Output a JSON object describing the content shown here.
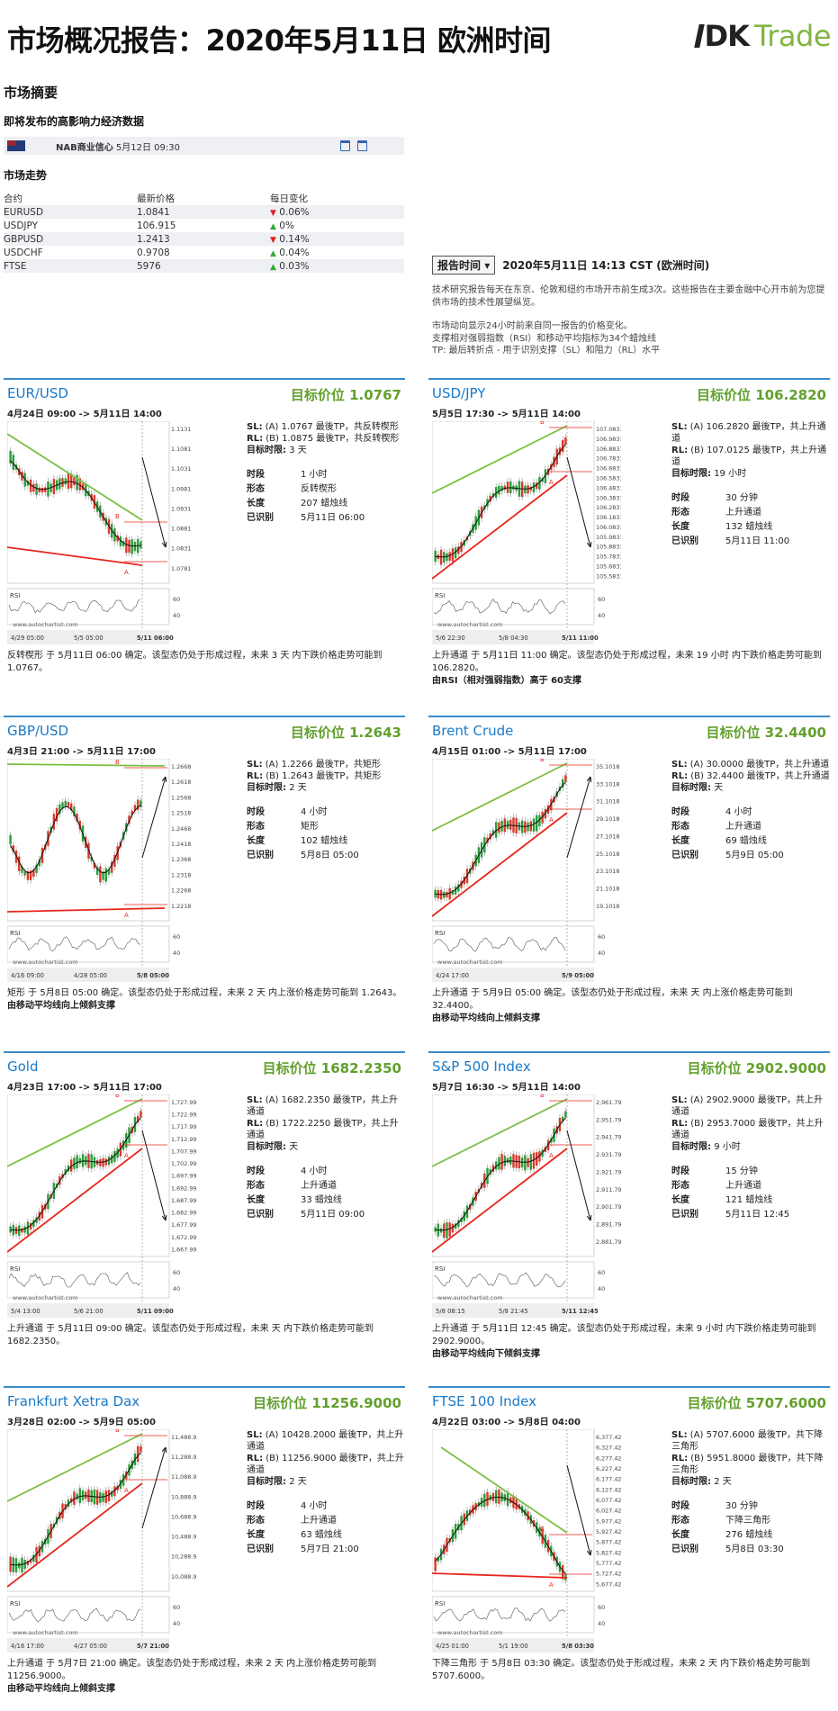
{
  "header": {
    "title": "市场概况报告：2020年5月11日 欧洲时间",
    "logo_mark": "DK",
    "logo_text": "Trade"
  },
  "summary": {
    "title": "市场摘要",
    "events_title": "即将发布的高影响力经济数据",
    "event": {
      "name": "NAB商业信心",
      "time": "5月12日 09:30",
      "flag": "australia-flag"
    },
    "trend_title": "市场走势",
    "columns": [
      "合约",
      "最新价格",
      "每日变化"
    ],
    "rows": [
      {
        "sym": "EURUSD",
        "price": "1.0841",
        "dir": "down",
        "chg": "0.06%"
      },
      {
        "sym": "USDJPY",
        "price": "106.915",
        "dir": "up",
        "chg": "0%"
      },
      {
        "sym": "GBPUSD",
        "price": "1.2413",
        "dir": "down",
        "chg": "0.14%"
      },
      {
        "sym": "USDCHF",
        "price": "0.9708",
        "dir": "up",
        "chg": "0.04%"
      },
      {
        "sym": "FTSE",
        "price": "5976",
        "dir": "up",
        "chg": "0.03%"
      }
    ]
  },
  "report": {
    "button": "报告时间",
    "time": "2020年5月11日 14:13 CST (欧洲时间)",
    "info1": "技术研究报告每天在东京、伦敦和纽约市场开市前生成3次。这些报告在主要金融中心开市前为您提供市场的技术性展望纵览。",
    "info2": "市场动向显示24小时前来自同一报告的价格变化。",
    "info3": "支撑相对强弱指数（RSI）和移动平均指标为34个蜡烛线",
    "info4": "TP: 最后转折点 - 用于识别支撑（SL）和阻力（RL）水平"
  },
  "labels": {
    "period": "时段",
    "pattern": "形态",
    "length": "长度",
    "identified": "已识别",
    "rsi": "RSI",
    "watermark": "www.autochartist.com"
  },
  "colors": {
    "title_blue": "#1a7ac8",
    "target_green": "#62a02c",
    "pattern_green": "#7ac043",
    "pattern_red": "#e8261c",
    "card_border": "#3a8cc8"
  },
  "cards": [
    {
      "name": "EUR/USD",
      "target": "目标价位 1.0767",
      "range": "4月24日 09:00 -> 5月11日 14:00",
      "sl": "SL:",
      "sl_text": "(A) 1.0767 最後TP，共反转楔形",
      "rl": "RL:",
      "rl_text": "(B) 1.0875 最後TP，共反转楔形",
      "tf_label": "目标时限:",
      "tf": "3 天",
      "period": "1 小时",
      "pattern": "反转楔形",
      "length": "207 蜡烛线",
      "identified": "5月11日 06:00",
      "desc": "反转楔形 于 5月11日 06:00 确定。该型态仍处于形成过程，未来 3 天 内下跌价格走势可能到 1.0767。",
      "note": "",
      "yticks": [
        "1.1131",
        "1.1081",
        "1.1031",
        "1.0981",
        "1.0931",
        "1.0881",
        "1.0831",
        "1.0781"
      ],
      "xticks": [
        "4/29 05:00",
        "5/5 05:00",
        "5/11 06:00"
      ],
      "kind": "wedge-down"
    },
    {
      "name": "USD/JPY",
      "target": "目标价位 106.2820",
      "range": "5月5日 17:30 -> 5月11日 14:00",
      "sl": "SL:",
      "sl_text": "(A) 106.2820 最後TP，共上升通道",
      "rl": "RL:",
      "rl_text": "(B) 107.0125 最後TP，共上升通道",
      "tf_label": "目标时限:",
      "tf": "19 小时",
      "period": "30 分钟",
      "pattern": "上升通道",
      "length": "132 蜡烛线",
      "identified": "5月11日 11:00",
      "desc": "上升通道 于 5月11日 11:00 确定。该型态仍处于形成过程，未来 19 小时 内下跌价格走势可能到 106.2820。",
      "note": "由RSI（相对强弱指数）高于 60支撑",
      "yticks": [
        "107.0831",
        "106.9831",
        "106.8831",
        "106.7831",
        "106.6831",
        "106.5831",
        "106.4831",
        "106.3831",
        "106.2831",
        "106.1831",
        "106.0831",
        "105.9831",
        "105.8831",
        "105.7831",
        "105.6831",
        "105.5831"
      ],
      "xticks": [
        "5/6 22:30",
        "5/8 04:30",
        "5/11 11:00"
      ],
      "kind": "channel-up-down"
    },
    {
      "name": "GBP/USD",
      "target": "目标价位 1.2643",
      "range": "4月3日 21:00 -> 5月11日 17:00",
      "sl": "SL:",
      "sl_text": "(A) 1.2266 最後TP，共矩形",
      "rl": "RL:",
      "rl_text": "(B) 1.2643 最後TP，共矩形",
      "tf_label": "目标时限:",
      "tf": "2 天",
      "period": "4 小时",
      "pattern": "矩形",
      "length": "102 蜡烛线",
      "identified": "5月8日 05:00",
      "desc": "矩形 于 5月8日 05:00 确定。该型态仍处于形成过程，未来 2 天 内上涨价格走势可能到 1.2643。",
      "note": "由移动平均线向上倾斜支撑",
      "yticks": [
        "1.2668",
        "1.2618",
        "1.2568",
        "1.2518",
        "1.2468",
        "1.2418",
        "1.2368",
        "1.2318",
        "1.2268",
        "1.2218"
      ],
      "xticks": [
        "4/16 09:00",
        "4/28 05:00",
        "5/8 05:00"
      ],
      "kind": "rect-up"
    },
    {
      "name": "Brent Crude",
      "target": "目标价位 32.4400",
      "range": "4月15日 01:00 -> 5月11日 17:00",
      "sl": "SL:",
      "sl_text": "(A) 30.0000 最後TP，共上升通道",
      "rl": "RL:",
      "rl_text": "(B) 32.4400 最後TP，共上升通道",
      "tf_label": "目标时限:",
      "tf": "天",
      "period": "4 小时",
      "pattern": "上升通道",
      "length": "69 蜡烛线",
      "identified": "5月9日 05:00",
      "desc": "上升通道 于 5月9日 05:00 确定。该型态仍处于形成过程，未来 天 内上涨价格走势可能到 32.4400。",
      "note": "由移动平均线向上倾斜支撑",
      "yticks": [
        "35.1018",
        "33.1018",
        "31.1018",
        "29.1018",
        "27.1018",
        "25.1018",
        "23.1018",
        "21.1018",
        "19.1018"
      ],
      "xticks": [
        "4/24 17:00",
        "5/9 05:00"
      ],
      "kind": "channel-up-up"
    },
    {
      "name": "Gold",
      "target": "目标价位 1682.2350",
      "range": "4月23日 17:00 -> 5月11日 17:00",
      "sl": "SL:",
      "sl_text": "(A) 1682.2350 最後TP，共上升通道",
      "rl": "RL:",
      "rl_text": "(B) 1722.2250 最後TP，共上升通道",
      "tf_label": "目标时限:",
      "tf": "天",
      "period": "4 小时",
      "pattern": "上升通道",
      "length": "33 蜡烛线",
      "identified": "5月11日 09:00",
      "desc": "上升通道 于 5月11日 09:00 确定。该型态仍处于形成过程，未来 天 内下跌价格走势可能到 1682.2350。",
      "note": "",
      "yticks": [
        "1,727.9969",
        "1,722.9969",
        "1,717.9969",
        "1,712.9969",
        "1,707.9969",
        "1,702.9969",
        "1,697.9969",
        "1,692.9969",
        "1,687.9969",
        "1,682.9969",
        "1,677.9969",
        "1,672.9969",
        "1,667.9969"
      ],
      "xticks": [
        "5/4 13:00",
        "5/6 21:00",
        "5/11 09:00"
      ],
      "kind": "channel-up-down"
    },
    {
      "name": "S&P 500 Index",
      "target": "目标价位 2902.9000",
      "range": "5月7日 16:30 -> 5月11日 14:00",
      "sl": "SL:",
      "sl_text": "(A) 2902.9000 最後TP，共上升通道",
      "rl": "RL:",
      "rl_text": "(B) 2953.7000 最後TP，共上升通道",
      "tf_label": "目标时限:",
      "tf": "9 小时",
      "period": "15 分钟",
      "pattern": "上升通道",
      "length": "121 蜡烛线",
      "identified": "5月11日 12:45",
      "desc": "上升通道 于 5月11日 12:45 确定。该型态仍处于形成过程，未来 9 小时 内下跌价格走势可能到 2902.9000。",
      "note": "由移动平均线向下倾斜支撑",
      "yticks": [
        "2,961.7965",
        "2,951.7965",
        "2,941.7965",
        "2,931.7965",
        "2,921.7965",
        "2,911.7965",
        "2,901.7965",
        "2,891.7965",
        "2,881.7965"
      ],
      "xticks": [
        "5/8 08:15",
        "5/8 21:45",
        "5/11 12:45"
      ],
      "kind": "channel-up-down"
    },
    {
      "name": "Frankfurt Xetra Dax",
      "target": "目标价位 11256.9000",
      "range": "3月28日 02:00 -> 5月9日 05:00",
      "sl": "SL:",
      "sl_text": "(A) 10428.2000 最後TP，共上升通道",
      "rl": "RL:",
      "rl_text": "(B) 11256.9000 最後TP，共上升通道",
      "tf_label": "目标时限:",
      "tf": "2 天",
      "period": "4 小时",
      "pattern": "上升通道",
      "length": "63 蜡烛线",
      "identified": "5月7日 21:00",
      "desc": "上升通道 于 5月7日 21:00 确定。该型态仍处于形成过程，未来 2 天 内上涨价格走势可能到 11256.9000。",
      "note": "由移动平均线向上倾斜支撑",
      "yticks": [
        "11,488.9760",
        "11,288.9760",
        "11,088.9760",
        "10,888.9760",
        "10,688.9760",
        "10,488.9760",
        "10,288.9760",
        "10,088.9760"
      ],
      "xticks": [
        "4/16 17:00",
        "4/27 05:00",
        "5/7 21:00"
      ],
      "kind": "channel-up-up"
    },
    {
      "name": "FTSE 100 Index",
      "target": "目标价位 5707.6000",
      "range": "4月22日 03:00 -> 5月8日 04:00",
      "sl": "SL:",
      "sl_text": "(A) 5707.6000 最後TP，共下降三角形",
      "rl": "RL:",
      "rl_text": "(B) 5951.8000 最後TP，共下降三角形",
      "tf_label": "目标时限:",
      "tf": "2 天",
      "period": "30 分钟",
      "pattern": "下降三角形",
      "length": "276 蜡烛线",
      "identified": "5月8日 03:30",
      "desc": "下降三角形 于 5月8日 03:30 确定。该型态仍处于形成过程，未来 2 天 内下跌价格走势可能到 5707.6000。",
      "note": "",
      "yticks": [
        "6,377.4210",
        "6,327.4210",
        "6,277.4210",
        "6,227.4210",
        "6,177.4210",
        "6,127.4210",
        "6,077.4210",
        "6,027.4210",
        "5,977.4210",
        "5,927.4210",
        "5,877.4210",
        "5,827.4210",
        "5,777.4210",
        "5,727.4210",
        "5,677.4210"
      ],
      "xticks": [
        "4/25 01:00",
        "5/1 19:00",
        "5/8 03:30"
      ],
      "kind": "triangle-down"
    }
  ]
}
